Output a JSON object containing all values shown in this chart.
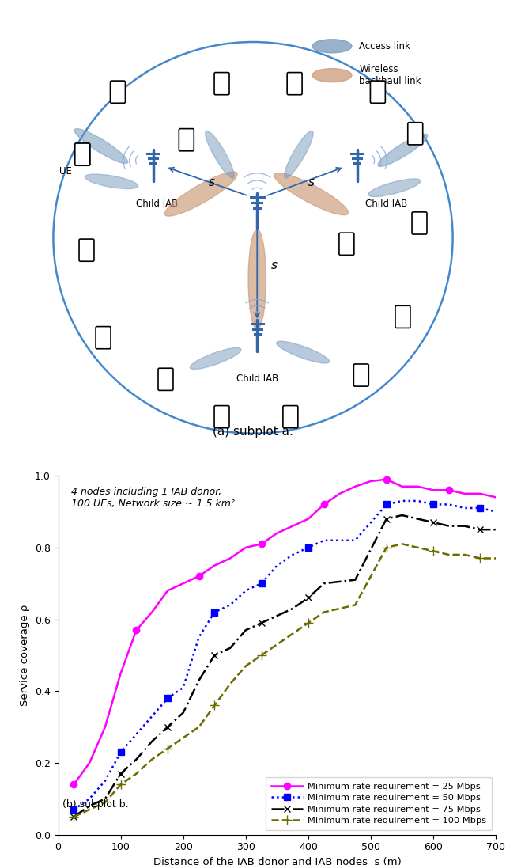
{
  "title_a": "(a) subplot a.",
  "title_b": "(b) subplot b.",
  "annotation": "4 nodes including 1 IAB donor,\n100 UEs, Network size ~ 1.5 km²",
  "xlabel": "Distance of the IAB donor and IAB nodes  s (m)",
  "ylabel": "Service coverage ρ",
  "xlim": [
    0,
    700
  ],
  "ylim": [
    0,
    1.0
  ],
  "xticks": [
    0,
    100,
    200,
    300,
    400,
    500,
    600,
    700
  ],
  "yticks": [
    0,
    0.2,
    0.4,
    0.6,
    0.8,
    1.0
  ],
  "legend_labels": [
    "Minimum rate requirement = 25 Mbps",
    "Minimum rate requirement = 50 Mbps",
    "Minimum rate requirement = 75 Mbps",
    "Minimum rate requirement = 100 Mbps"
  ],
  "line_colors": [
    "#FF00FF",
    "#0000FF",
    "#000000",
    "#6B6B00"
  ],
  "line_styles": [
    "-",
    ":",
    "-.",
    "--"
  ],
  "markers": [
    "o",
    "s",
    "x",
    "+"
  ],
  "x_25": [
    25,
    50,
    75,
    100,
    125,
    150,
    175,
    200,
    225,
    250,
    275,
    300,
    325,
    350,
    375,
    400,
    425,
    450,
    475,
    500,
    525,
    550,
    575,
    600,
    625,
    650,
    675,
    700
  ],
  "y_25": [
    0.14,
    0.2,
    0.3,
    0.45,
    0.57,
    0.62,
    0.68,
    0.7,
    0.72,
    0.75,
    0.77,
    0.8,
    0.81,
    0.84,
    0.86,
    0.88,
    0.92,
    0.95,
    0.97,
    0.985,
    0.99,
    0.97,
    0.97,
    0.96,
    0.96,
    0.95,
    0.95,
    0.94
  ],
  "x_50": [
    25,
    50,
    75,
    100,
    125,
    150,
    175,
    200,
    225,
    250,
    275,
    300,
    325,
    350,
    375,
    400,
    425,
    475,
    525,
    550,
    575,
    600,
    625,
    650,
    675,
    700
  ],
  "y_50": [
    0.07,
    0.1,
    0.15,
    0.23,
    0.28,
    0.33,
    0.38,
    0.41,
    0.55,
    0.62,
    0.64,
    0.68,
    0.7,
    0.75,
    0.78,
    0.8,
    0.82,
    0.82,
    0.92,
    0.93,
    0.93,
    0.92,
    0.92,
    0.91,
    0.91,
    0.9
  ],
  "x_75": [
    25,
    50,
    75,
    100,
    125,
    150,
    175,
    200,
    225,
    250,
    275,
    300,
    325,
    350,
    375,
    400,
    425,
    475,
    525,
    550,
    575,
    600,
    625,
    650,
    675,
    700
  ],
  "y_75": [
    0.05,
    0.08,
    0.1,
    0.17,
    0.21,
    0.26,
    0.3,
    0.34,
    0.43,
    0.5,
    0.52,
    0.57,
    0.59,
    0.61,
    0.63,
    0.66,
    0.7,
    0.71,
    0.88,
    0.89,
    0.88,
    0.87,
    0.86,
    0.86,
    0.85,
    0.85
  ],
  "x_100": [
    25,
    50,
    75,
    100,
    125,
    150,
    175,
    200,
    225,
    250,
    275,
    300,
    325,
    350,
    375,
    400,
    425,
    475,
    525,
    550,
    575,
    600,
    625,
    650,
    675,
    700
  ],
  "y_100": [
    0.05,
    0.07,
    0.09,
    0.14,
    0.17,
    0.21,
    0.24,
    0.27,
    0.3,
    0.36,
    0.42,
    0.47,
    0.5,
    0.53,
    0.56,
    0.59,
    0.62,
    0.64,
    0.8,
    0.81,
    0.8,
    0.79,
    0.78,
    0.78,
    0.77,
    0.77
  ],
  "bg_color": "#FFFFFF",
  "circle_color": "#4488CC",
  "bs_color": "#3366AA",
  "wifi_color": "#88AADD",
  "access_color": "#7799BB",
  "backhaul_color": "#CC9977"
}
